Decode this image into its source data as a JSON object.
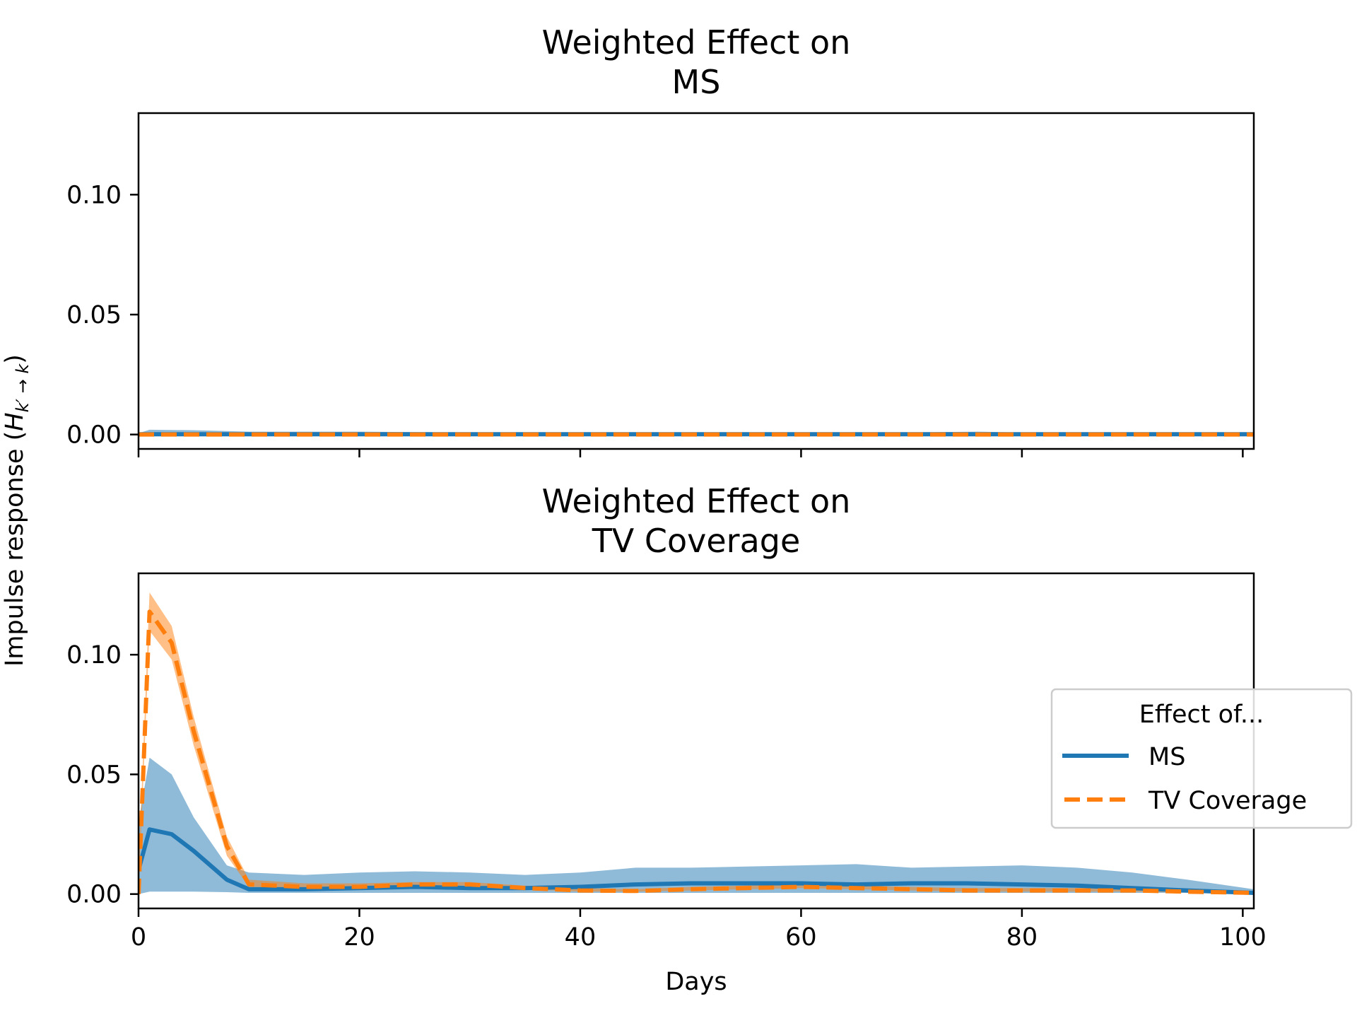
{
  "chart_data": {
    "type": "line",
    "ylabel": "Impulse response (",
    "ylabel_math": "H",
    "ylabel_sub": "k′ → k",
    "ylabel_close": ")",
    "xlabel": "Days",
    "xlim": [
      0,
      101
    ],
    "ylim": [
      -0.006,
      0.134
    ],
    "xticks": [
      0,
      20,
      40,
      60,
      80,
      100
    ],
    "yticks": [
      0.0,
      0.05,
      0.1
    ],
    "ytick_labels": [
      "0.00",
      "0.05",
      "0.10"
    ],
    "colors": {
      "ms": "#1f77b4",
      "tv": "#ff7f0e"
    },
    "legend": {
      "title": "Effect of...",
      "placement": "center-right",
      "entries": [
        "MS",
        "TV Coverage"
      ]
    },
    "panels": [
      {
        "title_line1": "Weighted Effect on",
        "title_line2": "MS",
        "x_tick_labels_visible": false,
        "series": [
          {
            "name": "MS",
            "style": "solid",
            "x": [
              0,
              1,
              5,
              10,
              20,
              30,
              40,
              50,
              60,
              70,
              76,
              80,
              90,
              101
            ],
            "y": [
              0.0001,
              0.0001,
              0.0001,
              0.0001,
              0.0001,
              0.0001,
              0.0001,
              0.0001,
              0.0001,
              0.0001,
              0.0001,
              0.0001,
              0.0001,
              0.0001
            ],
            "lower": [
              0,
              0,
              0,
              0,
              0,
              0,
              0,
              0,
              0,
              0,
              0,
              0,
              0,
              0
            ],
            "upper": [
              0.0005,
              0.002,
              0.0018,
              0.0012,
              0.0012,
              0.0008,
              0.0004,
              0.0003,
              0.0004,
              0.0009,
              0.0012,
              0.0008,
              0.0004,
              0.0002
            ]
          },
          {
            "name": "TV Coverage",
            "style": "dashed",
            "x": [
              0,
              101
            ],
            "y": [
              0.0,
              0.0
            ],
            "lower": [
              0,
              0
            ],
            "upper": [
              0.0003,
              0.0003
            ]
          }
        ]
      },
      {
        "title_line1": "Weighted Effect on",
        "title_line2": "TV Coverage",
        "x_tick_labels_visible": true,
        "series": [
          {
            "name": "MS",
            "style": "solid",
            "x": [
              0,
              1,
              3,
              5,
              8,
              10,
              15,
              20,
              25,
              30,
              35,
              40,
              45,
              50,
              55,
              60,
              65,
              70,
              75,
              80,
              85,
              90,
              95,
              101
            ],
            "y": [
              0.01,
              0.027,
              0.025,
              0.018,
              0.006,
              0.002,
              0.002,
              0.0025,
              0.003,
              0.0025,
              0.0025,
              0.003,
              0.004,
              0.0045,
              0.0045,
              0.0045,
              0.004,
              0.0045,
              0.0045,
              0.004,
              0.0035,
              0.0025,
              0.0015,
              0.0005
            ],
            "lower": [
              0,
              0.001,
              0.001,
              0.001,
              0.0008,
              0.0005,
              0.0005,
              0.0005,
              0.0005,
              0.0005,
              0.0005,
              0.0005,
              0.0005,
              0.0005,
              0.0005,
              0.0005,
              0.0005,
              0.0005,
              0.0005,
              0.0005,
              0.0005,
              0.0005,
              0.0005,
              0.0003
            ],
            "upper": [
              0.03,
              0.057,
              0.05,
              0.032,
              0.012,
              0.009,
              0.008,
              0.009,
              0.0095,
              0.009,
              0.008,
              0.009,
              0.011,
              0.011,
              0.0115,
              0.012,
              0.0125,
              0.011,
              0.0115,
              0.012,
              0.011,
              0.009,
              0.006,
              0.002
            ]
          },
          {
            "name": "TV Coverage",
            "style": "dashed",
            "x": [
              0,
              1,
              3,
              5,
              8,
              10,
              15,
              20,
              25,
              30,
              35,
              40,
              45,
              50,
              55,
              60,
              65,
              70,
              75,
              80,
              85,
              90,
              95,
              101
            ],
            "y": [
              0.0,
              0.118,
              0.105,
              0.068,
              0.02,
              0.004,
              0.003,
              0.003,
              0.004,
              0.004,
              0.0025,
              0.0015,
              0.0013,
              0.002,
              0.0025,
              0.003,
              0.0025,
              0.002,
              0.0015,
              0.0015,
              0.0015,
              0.0015,
              0.001,
              0.0005
            ],
            "lower": [
              0,
              0.11,
              0.098,
              0.062,
              0.016,
              0.003,
              0.0025,
              0.0025,
              0.0035,
              0.0035,
              0.002,
              0.001,
              0.001,
              0.0015,
              0.002,
              0.0025,
              0.002,
              0.0015,
              0.001,
              0.001,
              0.001,
              0.001,
              0.0007,
              0.0003
            ],
            "upper": [
              0.01,
              0.126,
              0.112,
              0.074,
              0.024,
              0.006,
              0.0045,
              0.0045,
              0.005,
              0.005,
              0.0035,
              0.0025,
              0.002,
              0.003,
              0.0035,
              0.004,
              0.0035,
              0.003,
              0.0025,
              0.0025,
              0.0025,
              0.0025,
              0.0015,
              0.0008
            ]
          }
        ]
      }
    ]
  }
}
